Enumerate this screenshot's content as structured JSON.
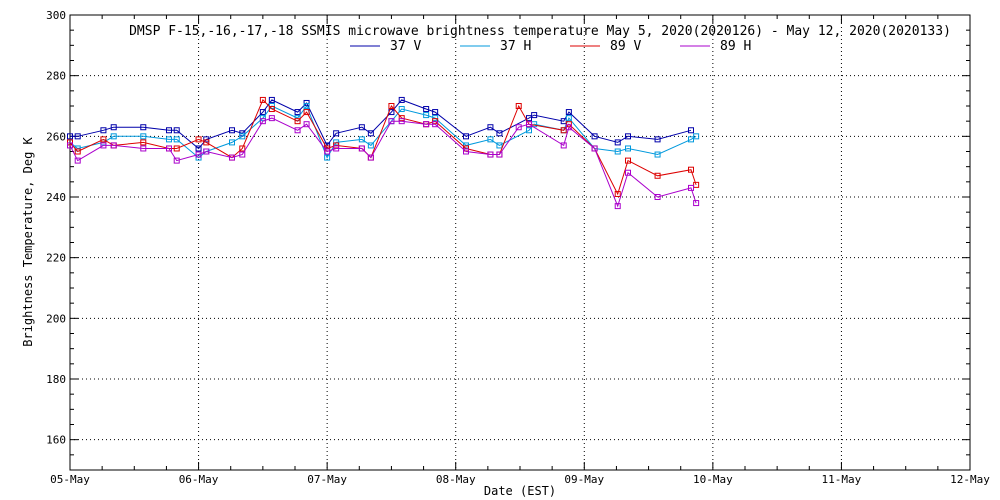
{
  "chart_data": {
    "type": "line",
    "title": "DMSP F-15,-16,-17,-18 SSMIS microwave brightness temperature May  5, 2020(2020126) - May 12, 2020(2020133)",
    "xlabel": "Date (EST)",
    "ylabel": "Brightness Temperature, Deg K",
    "xlim": [
      0,
      7
    ],
    "ylim": [
      150,
      300
    ],
    "x_tick_labels": [
      "05-May",
      "06-May",
      "07-May",
      "08-May",
      "09-May",
      "10-May",
      "11-May",
      "12-May"
    ],
    "y_ticks": [
      160,
      180,
      200,
      220,
      240,
      260,
      280,
      300
    ],
    "grid": true,
    "series": [
      {
        "name": "37 V",
        "color": "#0000aa",
        "x": [
          0.0,
          0.06,
          0.26,
          0.34,
          0.57,
          0.77,
          0.83,
          1.0,
          1.06,
          1.26,
          1.34,
          1.5,
          1.57,
          1.77,
          1.84,
          2.0,
          2.07,
          2.27,
          2.34,
          2.5,
          2.58,
          2.77,
          2.84,
          3.08,
          3.27,
          3.34,
          3.57,
          3.61,
          3.84,
          3.88,
          4.08,
          4.26,
          4.34,
          4.57,
          4.83
        ],
        "y": [
          260,
          260,
          262,
          263,
          263,
          262,
          262,
          256,
          259,
          262,
          261,
          268,
          272,
          268,
          271,
          257,
          261,
          263,
          261,
          268,
          272,
          269,
          268,
          260,
          263,
          261,
          266,
          267,
          265,
          268,
          260,
          258,
          260,
          259,
          262
        ]
      },
      {
        "name": "37 H",
        "color": "#0099dd",
        "x": [
          0.0,
          0.06,
          0.26,
          0.34,
          0.57,
          0.77,
          0.83,
          1.0,
          1.06,
          1.26,
          1.34,
          1.5,
          1.57,
          1.77,
          1.84,
          2.0,
          2.07,
          2.27,
          2.34,
          2.5,
          2.58,
          2.77,
          2.84,
          3.08,
          3.27,
          3.34,
          3.57,
          3.61,
          3.84,
          3.88,
          4.08,
          4.26,
          4.34,
          4.57,
          4.83,
          4.87
        ],
        "y": [
          258,
          256,
          258,
          260,
          260,
          259,
          259,
          253,
          255,
          258,
          260,
          266,
          270,
          266,
          270,
          253,
          258,
          259,
          257,
          265,
          269,
          267,
          266,
          257,
          259,
          257,
          262,
          264,
          262,
          266,
          256,
          255,
          256,
          254,
          259,
          260
        ]
      },
      {
        "name": "89 V",
        "color": "#dd0000",
        "x": [
          0.0,
          0.06,
          0.26,
          0.34,
          0.57,
          0.77,
          0.83,
          1.0,
          1.06,
          1.26,
          1.34,
          1.5,
          1.57,
          1.77,
          1.84,
          2.0,
          2.07,
          2.27,
          2.34,
          2.5,
          2.58,
          2.77,
          2.84,
          3.08,
          3.27,
          3.34,
          3.49,
          3.57,
          3.84,
          3.88,
          4.08,
          4.26,
          4.34,
          4.57,
          4.83,
          4.87
        ],
        "y": [
          258,
          255,
          259,
          257,
          258,
          256,
          256,
          259,
          258,
          253,
          256,
          272,
          269,
          265,
          268,
          256,
          257,
          256,
          253,
          270,
          266,
          264,
          265,
          256,
          254,
          254,
          270,
          264,
          262,
          264,
          256,
          241,
          252,
          247,
          249,
          244
        ]
      },
      {
        "name": "89 H",
        "color": "#aa00cc",
        "x": [
          0.0,
          0.06,
          0.26,
          0.34,
          0.57,
          0.77,
          0.83,
          1.0,
          1.06,
          1.26,
          1.34,
          1.5,
          1.57,
          1.77,
          1.84,
          2.0,
          2.07,
          2.27,
          2.34,
          2.5,
          2.58,
          2.77,
          2.84,
          3.08,
          3.27,
          3.34,
          3.49,
          3.57,
          3.84,
          3.88,
          4.08,
          4.26,
          4.34,
          4.57,
          4.83,
          4.87
        ],
        "y": [
          257,
          252,
          257,
          257,
          256,
          256,
          252,
          254,
          255,
          253,
          254,
          265,
          266,
          262,
          264,
          255,
          256,
          256,
          253,
          265,
          265,
          264,
          264,
          255,
          254,
          254,
          263,
          264,
          257,
          263,
          256,
          237,
          248,
          240,
          243,
          238
        ]
      }
    ]
  }
}
